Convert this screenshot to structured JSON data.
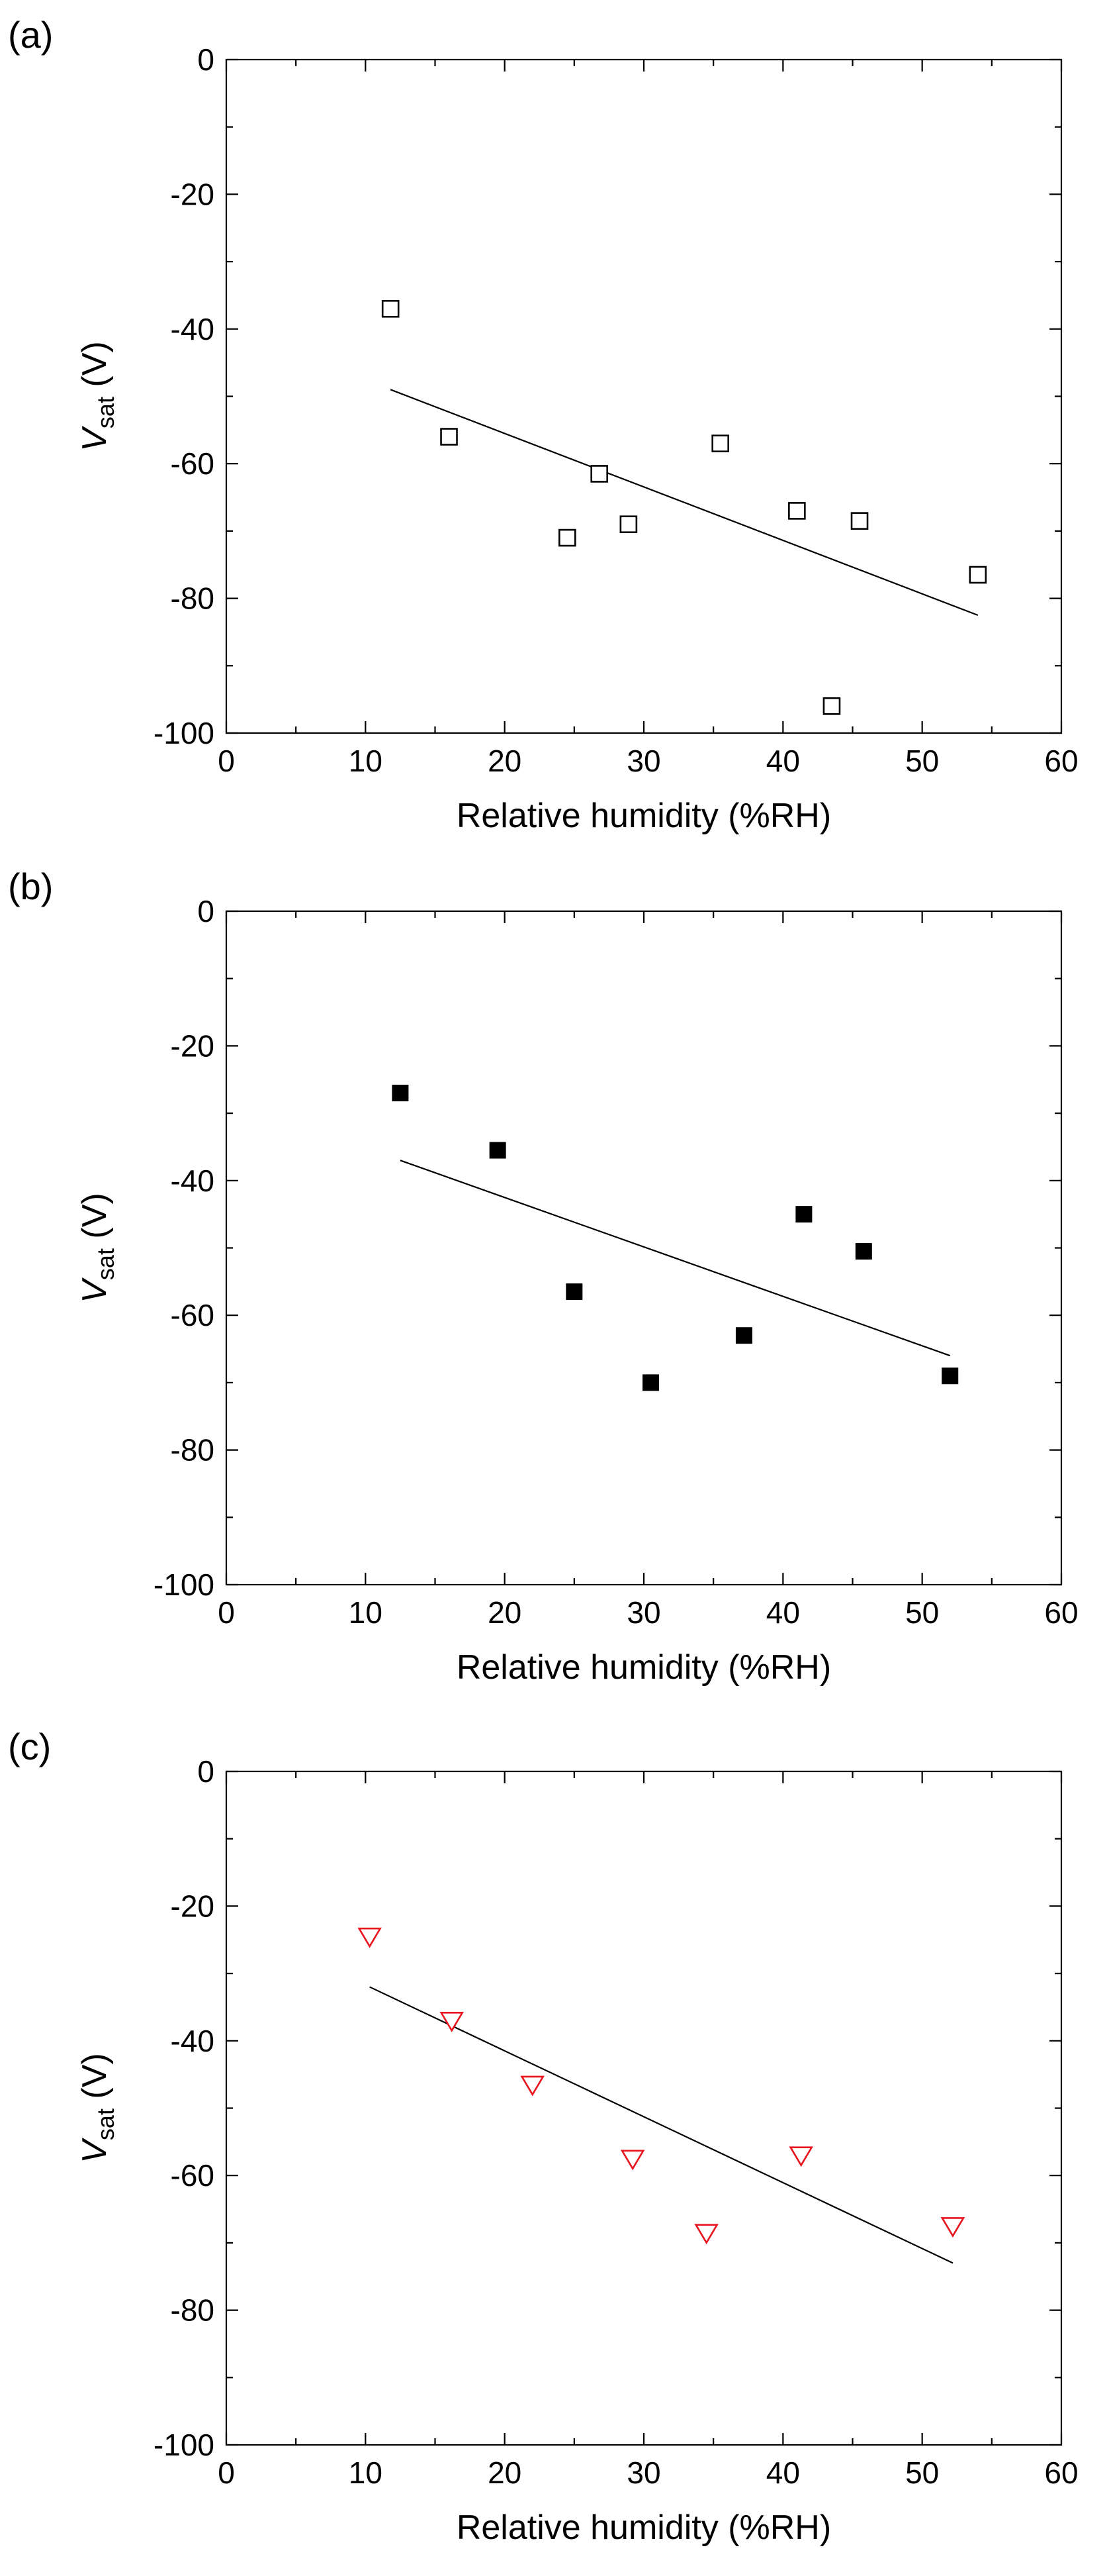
{
  "figure": {
    "xlabel": "Relative humidity (%RH)",
    "ylabel_main": "V",
    "ylabel_sub": "sat",
    "ylabel_unit": " (V)"
  },
  "chart_data": [
    {
      "type": "scatter",
      "panel": "(a)",
      "marker": "open-square",
      "marker_color": "#000000",
      "xlabel": "Relative humidity (%RH)",
      "ylabel": "Vsat (V)",
      "xlim": [
        0,
        60
      ],
      "ylim": [
        -100,
        0
      ],
      "xticks": [
        0,
        10,
        20,
        30,
        40,
        50,
        60
      ],
      "yticks": [
        0,
        -20,
        -40,
        -60,
        -80,
        -100
      ],
      "points": [
        {
          "x": 11.8,
          "y": -37
        },
        {
          "x": 16.0,
          "y": -56
        },
        {
          "x": 24.5,
          "y": -71
        },
        {
          "x": 26.8,
          "y": -61.5
        },
        {
          "x": 28.9,
          "y": -69
        },
        {
          "x": 35.5,
          "y": -57
        },
        {
          "x": 41.0,
          "y": -67
        },
        {
          "x": 43.5,
          "y": -96
        },
        {
          "x": 45.5,
          "y": -68.5
        },
        {
          "x": 54.0,
          "y": -76.5
        }
      ],
      "fit": {
        "x": [
          11.8,
          54.0
        ],
        "y": [
          -49,
          -82.5
        ]
      }
    },
    {
      "type": "scatter",
      "panel": "(b)",
      "marker": "filled-square",
      "marker_color": "#000000",
      "xlabel": "Relative humidity (%RH)",
      "ylabel": "Vsat (V)",
      "xlim": [
        0,
        60
      ],
      "ylim": [
        -100,
        0
      ],
      "xticks": [
        0,
        10,
        20,
        30,
        40,
        50,
        60
      ],
      "yticks": [
        0,
        -20,
        -40,
        -60,
        -80,
        -100
      ],
      "points": [
        {
          "x": 12.5,
          "y": -27
        },
        {
          "x": 19.5,
          "y": -35.5
        },
        {
          "x": 25.0,
          "y": -56.5
        },
        {
          "x": 30.5,
          "y": -70
        },
        {
          "x": 37.2,
          "y": -63
        },
        {
          "x": 41.5,
          "y": -45
        },
        {
          "x": 45.8,
          "y": -50.5
        },
        {
          "x": 52.0,
          "y": -69
        }
      ],
      "fit": {
        "x": [
          12.5,
          52.0
        ],
        "y": [
          -37,
          -66
        ]
      }
    },
    {
      "type": "scatter",
      "panel": "(c)",
      "marker": "open-down-triangle",
      "marker_color": "#e8141e",
      "xlabel": "Relative humidity (%RH)",
      "ylabel": "Vsat (V)",
      "xlim": [
        0,
        60
      ],
      "ylim": [
        -100,
        0
      ],
      "xticks": [
        0,
        10,
        20,
        30,
        40,
        50,
        60
      ],
      "yticks": [
        0,
        -20,
        -40,
        -60,
        -80,
        -100
      ],
      "points": [
        {
          "x": 10.3,
          "y": -24.5
        },
        {
          "x": 16.2,
          "y": -37
        },
        {
          "x": 22.0,
          "y": -46.5
        },
        {
          "x": 29.2,
          "y": -57.5
        },
        {
          "x": 34.5,
          "y": -68.5
        },
        {
          "x": 41.3,
          "y": -57
        },
        {
          "x": 52.2,
          "y": -67.5
        }
      ],
      "fit": {
        "x": [
          10.3,
          52.2
        ],
        "y": [
          -32,
          -73
        ]
      }
    }
  ]
}
